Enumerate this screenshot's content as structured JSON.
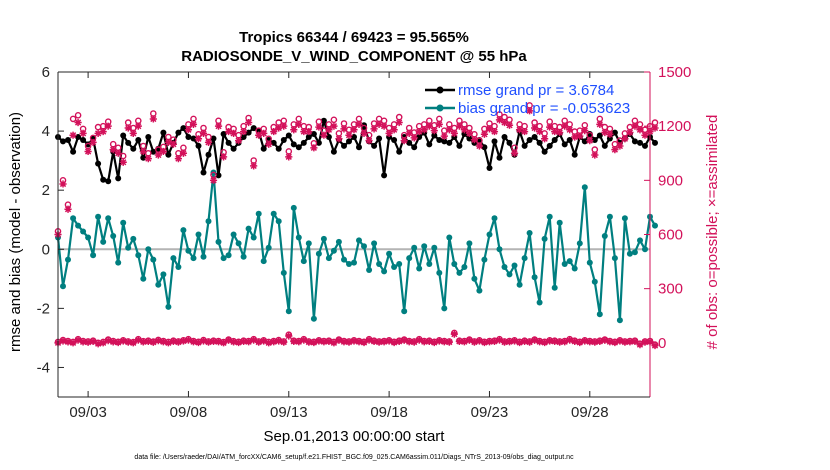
{
  "chart_data": {
    "type": "line",
    "title_line1": "Tropics 66344 / 69423 = 95.565%",
    "title_line2": "RADIOSONDE_V_WIND_COMPONENT @ 55 hPa",
    "xlabel": "Sep.01,2013 00:00:00 start",
    "ylabel_left": "rmse and bias (model - observation)",
    "ylabel_right": "# of obs: o=possible; ×=assimilated",
    "footer": "data file: /Users/raeder/DAI/ATM_forcXX/CAM6_setup/f.e21.FHIST_BGC.f09_025.CAM6assim.011/Diags_NTrS_2013-09/obs_diag_output.nc",
    "x_tick_labels": [
      "09/03",
      "09/08",
      "09/13",
      "09/18",
      "09/23",
      "09/28"
    ],
    "x_tick_days": [
      3,
      8,
      13,
      18,
      23,
      28
    ],
    "x_range_days": [
      1.5,
      31.0
    ],
    "y_left_ticks": [
      "-4",
      "-2",
      "0",
      "2",
      "4",
      "6"
    ],
    "y_left_tick_values": [
      -4,
      -2,
      0,
      2,
      4,
      6
    ],
    "y_left_range": [
      -5,
      6
    ],
    "y_right_ticks": [
      "0",
      "300",
      "600",
      "900",
      "1200",
      "1500"
    ],
    "y_right_tick_values": [
      0,
      300,
      600,
      900,
      1200,
      1500
    ],
    "y_right_range": [
      -300,
      1500
    ],
    "x_start_day": 1.5,
    "x_step_days": 0.25,
    "legend": {
      "rmse_label": "rmse grand pr = 3.6784",
      "bias_label": "bias grand pr = -0.053623",
      "placement": "top-right"
    },
    "colors": {
      "rmse": "#000000",
      "bias": "#007f80",
      "obs": "#d3115a",
      "zero_line": "#b4b4b4",
      "legend_text": "#1f4fff"
    },
    "series": [
      {
        "name": "rmse",
        "values": [
          3.8,
          3.65,
          3.7,
          3.3,
          3.8,
          3.7,
          3.55,
          3.75,
          2.9,
          2.35,
          2.3,
          3.3,
          2.4,
          3.85,
          3.6,
          3.4,
          3.7,
          3.1,
          3.8,
          3.3,
          3.4,
          3.95,
          3.2,
          3.6,
          3.95,
          4.1,
          3.8,
          3.75,
          3.5,
          2.6,
          3.2,
          3.75,
          2.5,
          3.9,
          3.6,
          3.4,
          3.6,
          3.8,
          3.95,
          4.1,
          4.0,
          3.4,
          3.7,
          3.6,
          3.4,
          3.7,
          3.85,
          3.55,
          3.45,
          3.6,
          3.8,
          3.9,
          3.6,
          4.35,
          3.8,
          3.3,
          3.7,
          3.5,
          3.65,
          3.8,
          3.45,
          4.2,
          3.65,
          3.5,
          3.75,
          2.5,
          3.8,
          3.7,
          3.3,
          3.8,
          3.6,
          3.45,
          3.8,
          3.95,
          3.55,
          3.85,
          3.7,
          3.65,
          3.6,
          3.8,
          3.5,
          3.9,
          3.75,
          3.6,
          3.7,
          3.45,
          2.75,
          3.65,
          3.1,
          3.8,
          3.6,
          3.2,
          4.0,
          3.5,
          3.7,
          3.8,
          3.6,
          3.3,
          3.5,
          3.7,
          3.9,
          3.55,
          3.7,
          3.2,
          3.8,
          3.65,
          3.9,
          3.7,
          3.85,
          3.5,
          3.75,
          3.95,
          3.6,
          3.75,
          3.9,
          3.65,
          3.6,
          3.5,
          3.8,
          3.6
        ]
      },
      {
        "name": "bias",
        "values": [
          0.4,
          -1.25,
          -0.35,
          1.05,
          0.8,
          0.6,
          0.4,
          -0.2,
          1.1,
          0.25,
          1.05,
          0.45,
          -0.45,
          0.9,
          0.05,
          0.35,
          -0.2,
          -1.0,
          0.0,
          -0.35,
          -1.2,
          -0.85,
          -1.95,
          -0.3,
          -0.6,
          0.65,
          -0.05,
          -0.3,
          0.5,
          -0.25,
          0.95,
          2.6,
          0.25,
          -0.3,
          -0.2,
          0.5,
          0.2,
          -0.25,
          0.7,
          0.4,
          1.2,
          -0.4,
          0.05,
          1.2,
          0.95,
          -0.8,
          -2.1,
          1.4,
          0.4,
          -0.4,
          0.2,
          -2.35,
          -0.15,
          0.35,
          -0.3,
          -0.05,
          0.25,
          -0.35,
          -0.5,
          -0.45,
          0.3,
          0.1,
          -0.7,
          0.2,
          -0.5,
          -0.75,
          -0.15,
          -0.6,
          -0.5,
          -2.1,
          -0.3,
          0.05,
          -0.65,
          0.1,
          -0.5,
          0.05,
          -0.8,
          -2.0,
          0.4,
          -0.5,
          -0.8,
          -0.6,
          0.2,
          -1.0,
          -1.4,
          -0.35,
          0.5,
          1.05,
          0.0,
          -0.6,
          -0.85,
          -0.55,
          -1.2,
          -0.3,
          0.55,
          -0.95,
          -1.8,
          0.35,
          1.1,
          -1.3,
          0.9,
          -0.5,
          -0.4,
          -0.65,
          0.2,
          2.1,
          -0.45,
          -1.1,
          -2.2,
          0.45,
          1.1,
          -0.3,
          -2.4,
          1.05,
          -0.15,
          -0.1,
          0.3,
          0.0,
          1.1,
          0.8
        ]
      },
      {
        "name": "obs_possible",
        "values": [
          618,
          900,
          765,
          1240,
          1260,
          1185,
          1090,
          1135,
          1195,
          1200,
          1225,
          1100,
          1080,
          1035,
          1220,
          1190,
          1230,
          1090,
          1050,
          1270,
          1070,
          1085,
          1140,
          1125,
          1050,
          1080,
          1210,
          1240,
          1155,
          1190,
          1140,
          930,
          1230,
          1055,
          1195,
          1185,
          1150,
          1200,
          1245,
          1010,
          1175,
          1185,
          1130,
          1195,
          1220,
          1230,
          1060,
          1210,
          1240,
          1200,
          1195,
          1105,
          1225,
          1175,
          1210,
          1235,
          1160,
          1215,
          1180,
          1210,
          1240,
          1190,
          1150,
          1215,
          1240,
          1230,
          1190,
          1210,
          1250,
          1150,
          1190,
          1165,
          1200,
          1210,
          1230,
          1205,
          1240,
          1175,
          1210,
          1190,
          1230,
          1210,
          1190,
          1155,
          1120,
          1185,
          1215,
          1200,
          1265,
          1250,
          1235,
          1080,
          1210,
          1200,
          1315,
          1220,
          1200,
          1160,
          1225,
          1200,
          1195,
          1230,
          1210,
          1170,
          1175,
          1205,
          1150,
          1070,
          1240,
          1195,
          1185,
          1100,
          1120,
          1160,
          1195,
          1230,
          1210,
          1180,
          1200,
          1220
        ]
      },
      {
        "name": "obs_assimilated",
        "values": [
          600,
          880,
          740,
          1150,
          1220,
          1160,
          1060,
          1110,
          1160,
          1170,
          1200,
          1070,
          1050,
          1000,
          1190,
          1160,
          1200,
          1060,
          1020,
          1240,
          1040,
          1060,
          1110,
          1100,
          1020,
          1050,
          1180,
          1210,
          1130,
          1160,
          1110,
          900,
          1200,
          1030,
          1170,
          1160,
          1120,
          1170,
          1220,
          980,
          1150,
          1160,
          1100,
          1170,
          1190,
          1200,
          1030,
          1180,
          1210,
          1170,
          1170,
          1080,
          1195,
          1150,
          1180,
          1200,
          1130,
          1185,
          1150,
          1180,
          1210,
          1160,
          1120,
          1185,
          1210,
          1200,
          1160,
          1180,
          1220,
          1120,
          1160,
          1135,
          1170,
          1180,
          1200,
          1175,
          1210,
          1145,
          1180,
          1160,
          1200,
          1180,
          1160,
          1125,
          1090,
          1155,
          1185,
          1170,
          1235,
          1220,
          1205,
          1050,
          1180,
          1170,
          1285,
          1190,
          1170,
          1130,
          1195,
          1170,
          1165,
          1200,
          1180,
          1140,
          1145,
          1175,
          1120,
          1040,
          1210,
          1165,
          1155,
          1070,
          1090,
          1130,
          1165,
          1200,
          1180,
          1150,
          1170,
          1190
        ]
      },
      {
        "name": "obs_possible_low",
        "values": [
          5,
          15,
          10,
          5,
          20,
          10,
          8,
          12,
          0,
          5,
          18,
          10,
          6,
          14,
          8,
          4,
          20,
          9,
          12,
          7,
          16,
          10,
          5,
          12,
          8,
          14,
          20,
          10,
          6,
          15,
          8,
          12,
          10,
          4,
          18,
          9,
          6,
          12,
          10,
          20,
          8,
          14,
          5,
          10,
          15,
          8,
          45,
          12,
          10,
          20,
          8,
          6,
          14,
          10,
          12,
          5,
          18,
          10,
          8,
          14,
          10,
          6,
          20,
          12,
          8,
          10,
          14,
          6,
          12,
          18,
          10,
          8,
          20,
          10,
          12,
          6,
          14,
          10,
          8,
          55,
          12,
          10,
          18,
          8,
          14,
          6,
          10,
          12,
          20,
          8,
          10,
          14,
          6,
          12,
          8,
          18,
          10,
          6,
          14,
          12,
          8,
          10,
          20,
          12,
          6,
          14,
          10,
          8,
          12,
          18,
          10,
          6,
          14,
          8,
          10,
          12,
          -5,
          8,
          10,
          -10
        ]
      },
      {
        "name": "obs_assimilated_low",
        "values": [
          0,
          10,
          5,
          0,
          15,
          5,
          3,
          8,
          -5,
          0,
          12,
          5,
          2,
          10,
          4,
          0,
          15,
          5,
          8,
          3,
          12,
          6,
          0,
          8,
          4,
          10,
          15,
          6,
          2,
          10,
          4,
          8,
          6,
          0,
          14,
          5,
          2,
          8,
          6,
          15,
          4,
          10,
          0,
          6,
          10,
          4,
          38,
          8,
          6,
          15,
          4,
          2,
          10,
          6,
          8,
          0,
          14,
          6,
          4,
          10,
          6,
          2,
          15,
          8,
          4,
          6,
          10,
          2,
          8,
          14,
          6,
          4,
          15,
          6,
          8,
          2,
          10,
          6,
          4,
          48,
          8,
          6,
          14,
          4,
          10,
          2,
          6,
          8,
          15,
          4,
          6,
          10,
          2,
          8,
          4,
          14,
          6,
          2,
          10,
          8,
          4,
          6,
          15,
          8,
          2,
          10,
          6,
          4,
          8,
          14,
          6,
          2,
          10,
          4,
          6,
          8,
          -10,
          4,
          6,
          -15
        ]
      }
    ]
  }
}
